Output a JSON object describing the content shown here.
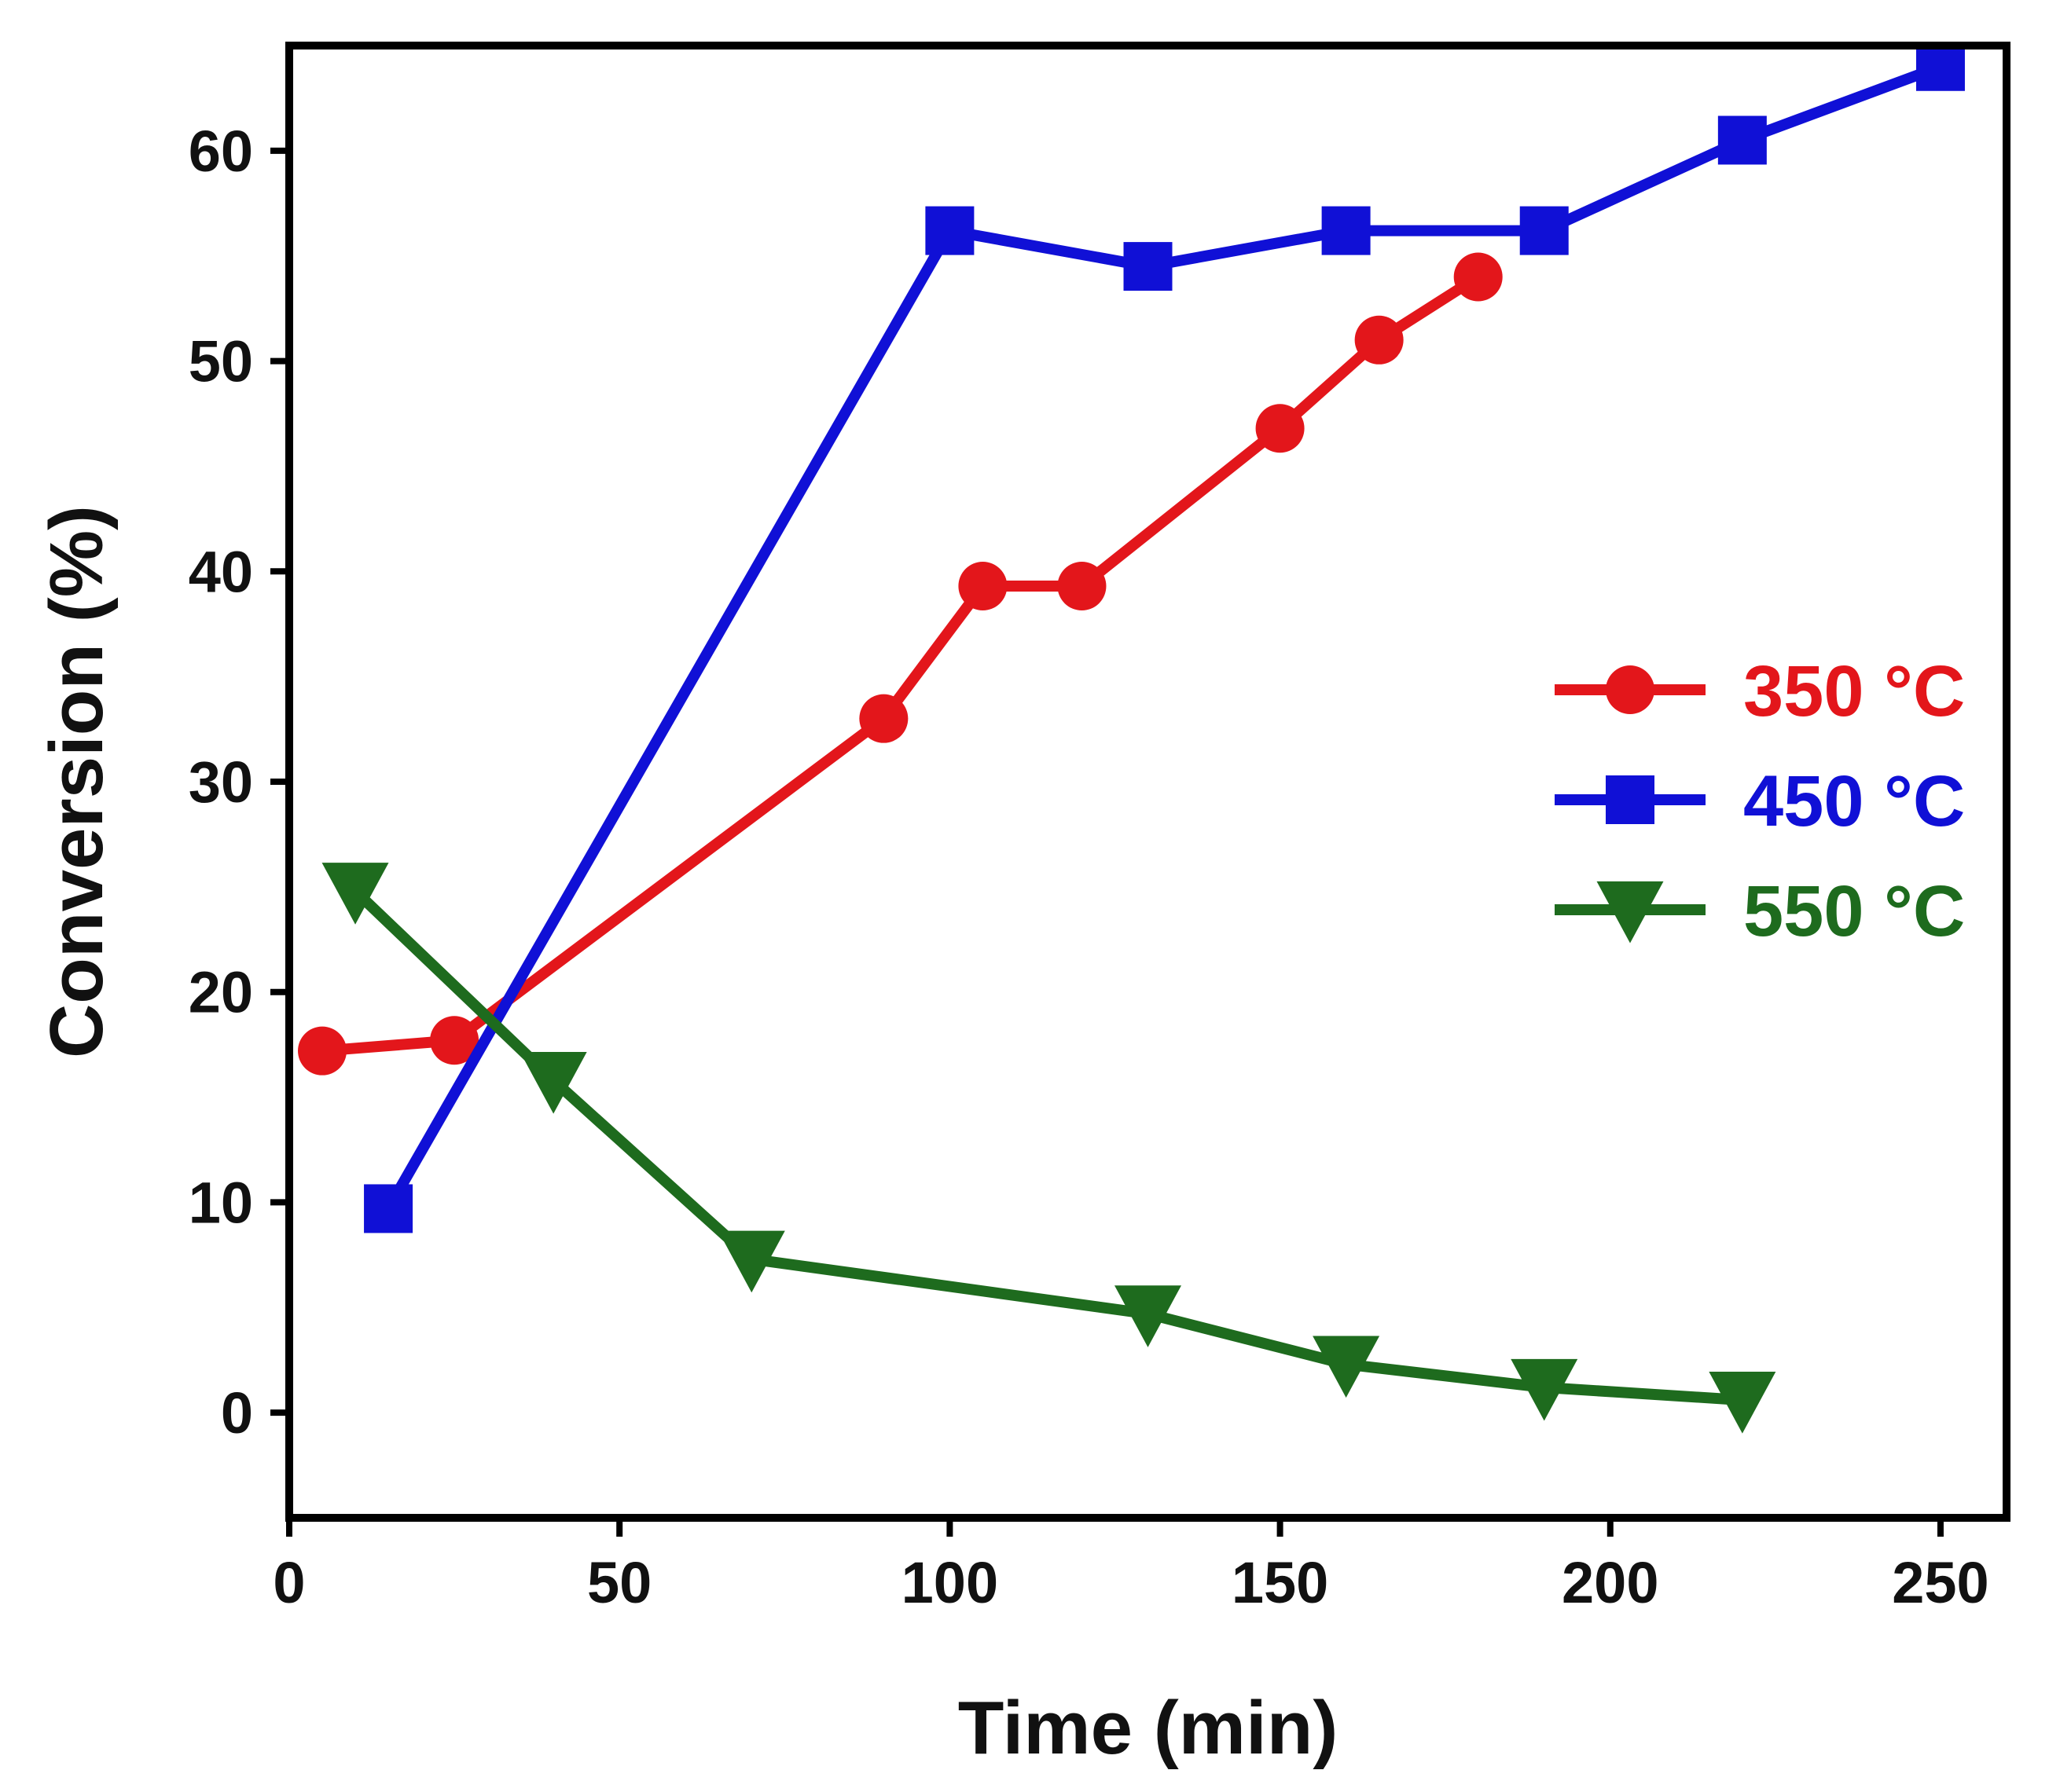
{
  "chart_data": {
    "type": "line",
    "title": "",
    "xlabel": "Time (min)",
    "ylabel": "Conversion (%)",
    "xlim": [
      0,
      260
    ],
    "ylim": [
      -5,
      65
    ],
    "xticks": [
      0,
      50,
      100,
      150,
      200,
      250
    ],
    "yticks": [
      0,
      10,
      20,
      30,
      40,
      50,
      60
    ],
    "grid": false,
    "legend_position": "right",
    "series": [
      {
        "name": "350 °C",
        "color": "#e3161b",
        "marker": "circle",
        "x": [
          5,
          25,
          90,
          105,
          120,
          150,
          165,
          180
        ],
        "y": [
          17.2,
          17.7,
          33.0,
          39.3,
          39.3,
          46.8,
          51.0,
          54.0
        ]
      },
      {
        "name": "450 °C",
        "color": "#1010d6",
        "marker": "square",
        "x": [
          15,
          100,
          130,
          160,
          190,
          220,
          250
        ],
        "y": [
          9.7,
          56.2,
          54.5,
          56.2,
          56.2,
          60.5,
          64.0
        ]
      },
      {
        "name": "550 °C",
        "color": "#1e6b1e",
        "marker": "triangle-down",
        "x": [
          10,
          40,
          70,
          130,
          160,
          190,
          220
        ],
        "y": [
          24.8,
          15.8,
          7.3,
          4.7,
          2.3,
          1.2,
          0.6
        ]
      }
    ]
  }
}
